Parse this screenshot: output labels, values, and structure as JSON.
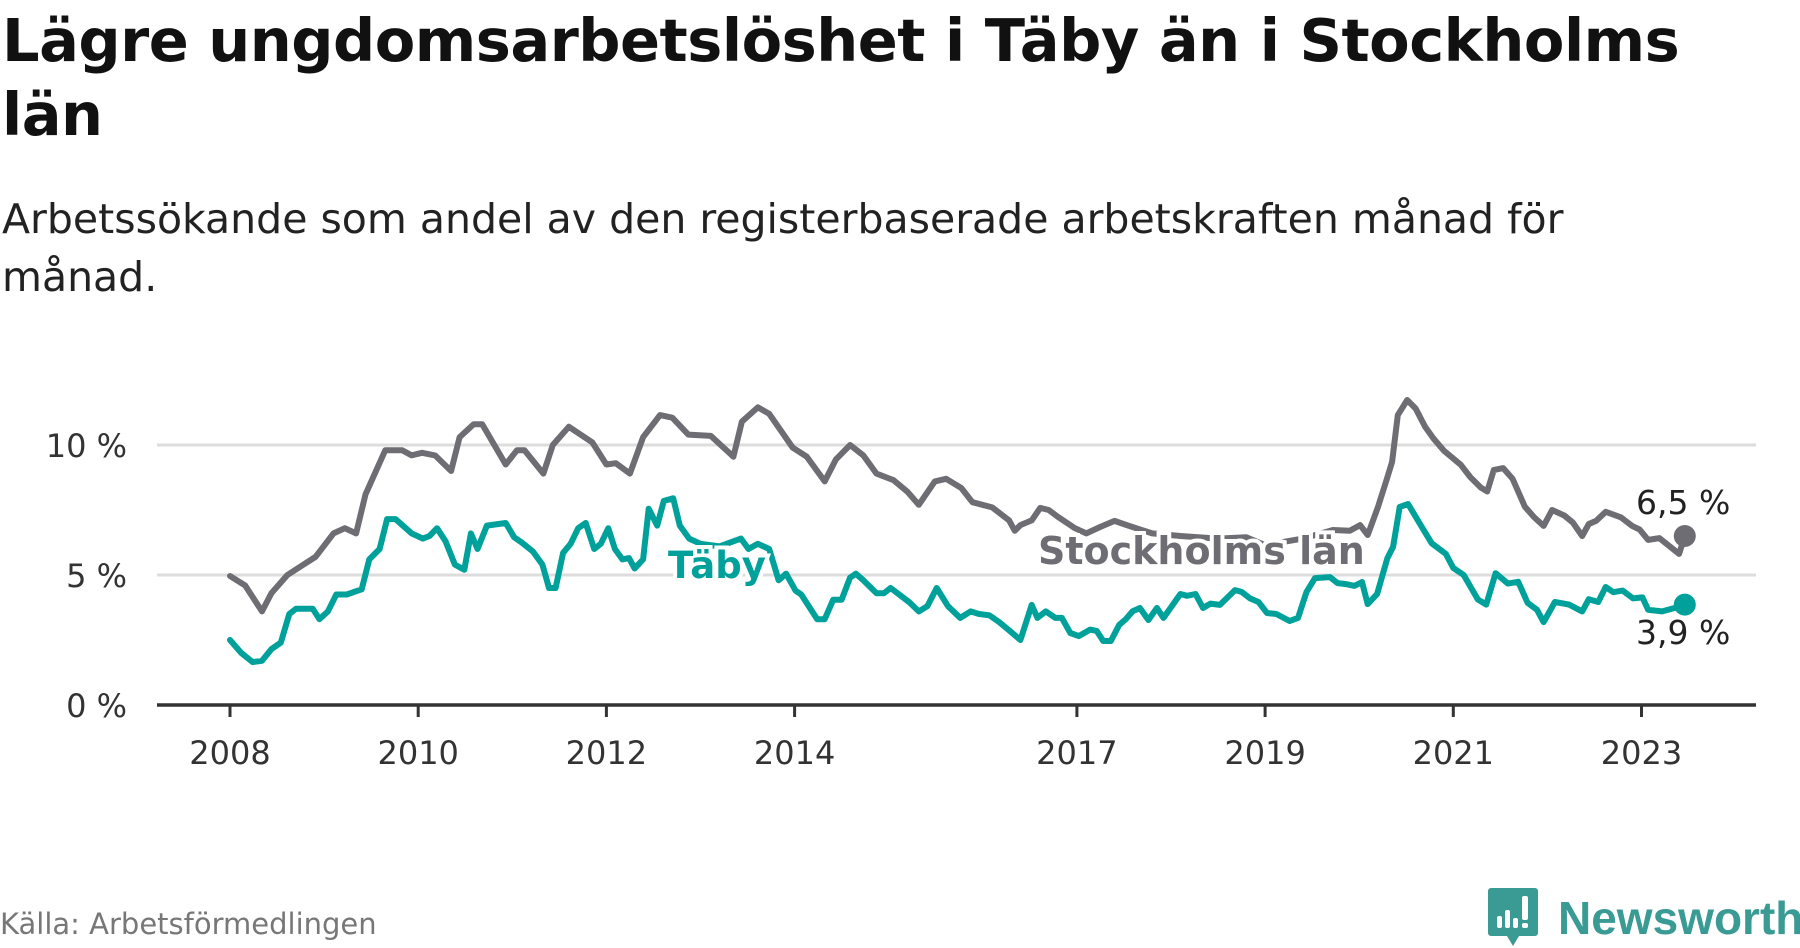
{
  "header": {
    "title": "Lägre ungdomsarbetslöshet i Täby än i Stockholms län",
    "subtitle": "Arbetssökande som andel av den registerbaserade arbetskraften månad för månad."
  },
  "footer": {
    "source": "Källa: Arbetsförmedlingen",
    "brand": "Newsworthy"
  },
  "colors": {
    "stockholm": "#6e6d73",
    "taby": "#00a19a",
    "grid": "#dddddd",
    "axis": "#333333",
    "brand": "#3a9a94"
  },
  "chart_data": {
    "type": "line",
    "title": "Lägre ungdomsarbetslöshet i Täby än i Stockholms län",
    "xlabel": "",
    "ylabel": "",
    "xlim": [
      2007.6,
      2024.3
    ],
    "ylim": [
      0,
      12
    ],
    "grid": true,
    "y_ticks": [
      0,
      5,
      10
    ],
    "y_tick_labels": [
      "0 %",
      "5 %",
      "10 %"
    ],
    "x_ticks": [
      2008,
      2010,
      2012,
      2014,
      2017,
      2019,
      2021,
      2023
    ],
    "x_tick_labels": [
      "2008",
      "2010",
      "2012",
      "2014",
      "2017",
      "2019",
      "2021",
      "2023"
    ],
    "series": [
      {
        "name": "Stockholms län",
        "end_label": "6,5 %",
        "x": [
          2008.0,
          2008.16,
          2008.34,
          2008.44,
          2008.61,
          2008.76,
          2008.91,
          2009.1,
          2009.22,
          2009.34,
          2009.44,
          2009.65,
          2009.83,
          2009.93,
          2010.04,
          2010.18,
          2010.35,
          2010.44,
          2010.59,
          2010.68,
          2010.93,
          2011.05,
          2011.13,
          2011.33,
          2011.43,
          2011.6,
          2011.85,
          2012.0,
          2012.1,
          2012.25,
          2012.39,
          2012.57,
          2012.7,
          2012.87,
          2013.11,
          2013.35,
          2013.44,
          2013.61,
          2013.73,
          2013.98,
          2014.13,
          2014.32,
          2014.44,
          2014.59,
          2014.73,
          2014.87,
          2015.05,
          2015.2,
          2015.32,
          2015.49,
          2015.61,
          2015.77,
          2015.89,
          2016.1,
          2016.28,
          2016.34,
          2016.4,
          2016.52,
          2016.61,
          2016.7,
          2016.8,
          2016.98,
          2017.1,
          2017.25,
          2017.4,
          2017.53,
          2017.8,
          2018.1,
          2018.5,
          2018.8,
          2019.0,
          2019.4,
          2019.72,
          2019.9,
          2020.01,
          2020.09,
          2020.2,
          2020.29,
          2020.35,
          2020.41,
          2020.51,
          2020.6,
          2020.7,
          2020.79,
          2020.9,
          2021.08,
          2021.18,
          2021.29,
          2021.36,
          2021.43,
          2021.53,
          2021.63,
          2021.76,
          2021.86,
          2021.96,
          2022.05,
          2022.18,
          2022.27,
          2022.37,
          2022.44,
          2022.52,
          2022.62,
          2022.78,
          2022.9,
          2022.98,
          2023.07,
          2023.19,
          2023.4,
          2023.46
        ],
        "values": [
          4.96,
          4.6,
          3.6,
          4.3,
          5.0,
          5.35,
          5.7,
          6.6,
          6.8,
          6.6,
          8.1,
          9.8,
          9.8,
          9.6,
          9.7,
          9.6,
          9.0,
          10.3,
          10.8,
          10.8,
          9.25,
          9.8,
          9.8,
          8.9,
          10.0,
          10.7,
          10.1,
          9.25,
          9.3,
          8.9,
          10.3,
          11.15,
          11.05,
          10.4,
          10.35,
          9.55,
          10.9,
          11.45,
          11.2,
          9.9,
          9.55,
          8.6,
          9.45,
          10.0,
          9.6,
          8.9,
          8.65,
          8.2,
          7.7,
          8.6,
          8.7,
          8.35,
          7.8,
          7.6,
          7.1,
          6.7,
          6.92,
          7.1,
          7.58,
          7.5,
          7.23,
          6.8,
          6.6,
          6.85,
          7.08,
          6.92,
          6.6,
          6.5,
          6.4,
          6.45,
          6.15,
          6.4,
          6.73,
          6.7,
          6.92,
          6.54,
          7.62,
          8.65,
          9.35,
          11.15,
          11.73,
          11.4,
          10.7,
          10.25,
          9.78,
          9.24,
          8.77,
          8.37,
          8.21,
          9.04,
          9.11,
          8.7,
          7.63,
          7.22,
          6.89,
          7.5,
          7.29,
          7.02,
          6.5,
          6.96,
          7.09,
          7.43,
          7.22,
          6.89,
          6.75,
          6.35,
          6.42,
          5.81,
          6.5
        ]
      },
      {
        "name": "Täby",
        "end_label": "3,9 %",
        "x": [
          2008.0,
          2008.12,
          2008.24,
          2008.34,
          2008.44,
          2008.54,
          2008.63,
          2008.7,
          2008.88,
          2008.95,
          2009.04,
          2009.13,
          2009.24,
          2009.4,
          2009.48,
          2009.59,
          2009.67,
          2009.76,
          2009.93,
          2010.05,
          2010.12,
          2010.2,
          2010.29,
          2010.39,
          2010.49,
          2010.56,
          2010.63,
          2010.73,
          2010.93,
          2011.02,
          2011.1,
          2011.22,
          2011.32,
          2011.39,
          2011.46,
          2011.54,
          2011.62,
          2011.7,
          2011.78,
          2011.87,
          2011.94,
          2012.02,
          2012.09,
          2012.17,
          2012.24,
          2012.3,
          2012.39,
          2012.45,
          2012.54,
          2012.61,
          2012.71,
          2012.78,
          2012.88,
          2013.0,
          2013.2,
          2013.43,
          2013.51,
          2013.61,
          2013.73,
          2013.83,
          2013.91,
          2014.01,
          2014.07,
          2014.24,
          2014.32,
          2014.41,
          2014.5,
          2014.59,
          2014.65,
          2014.73,
          2014.87,
          2014.95,
          2015.02,
          2015.22,
          2015.32,
          2015.41,
          2015.51,
          2015.63,
          2015.76,
          2015.87,
          2015.96,
          2016.07,
          2016.17,
          2016.27,
          2016.4,
          2016.52,
          2016.58,
          2016.67,
          2016.77,
          2016.84,
          2016.93,
          2017.02,
          2017.14,
          2017.21,
          2017.28,
          2017.36,
          2017.45,
          2017.52,
          2017.59,
          2017.67,
          2017.76,
          2017.85,
          2017.92,
          2018.1,
          2018.17,
          2018.26,
          2018.34,
          2018.42,
          2018.52,
          2018.68,
          2018.75,
          2018.84,
          2018.93,
          2019.02,
          2019.12,
          2019.26,
          2019.35,
          2019.44,
          2019.53,
          2019.69,
          2019.77,
          2019.86,
          2019.95,
          2020.03,
          2020.09,
          2020.19,
          2020.3,
          2020.36,
          2020.43,
          2020.52,
          2020.64,
          2020.77,
          2020.92,
          2021.0,
          2021.11,
          2021.26,
          2021.35,
          2021.45,
          2021.58,
          2021.69,
          2021.79,
          2021.89,
          2021.96,
          2022.08,
          2022.23,
          2022.37,
          2022.44,
          2022.54,
          2022.62,
          2022.7,
          2022.8,
          2022.91,
          2023.01,
          2023.07,
          2023.22,
          2023.35,
          2023.46
        ],
        "values": [
          2.5,
          2.0,
          1.65,
          1.7,
          2.15,
          2.4,
          3.5,
          3.7,
          3.7,
          3.3,
          3.6,
          4.25,
          4.25,
          4.45,
          5.6,
          6.0,
          7.15,
          7.15,
          6.6,
          6.4,
          6.5,
          6.8,
          6.3,
          5.4,
          5.2,
          6.6,
          6.0,
          6.9,
          7.0,
          6.45,
          6.25,
          5.9,
          5.4,
          4.5,
          4.5,
          5.85,
          6.2,
          6.8,
          7.0,
          6.0,
          6.2,
          6.8,
          6.0,
          5.6,
          5.65,
          5.25,
          5.6,
          7.55,
          6.9,
          7.85,
          7.95,
          6.9,
          6.4,
          6.2,
          6.1,
          6.4,
          6.0,
          6.2,
          6.0,
          4.8,
          5.05,
          4.4,
          4.25,
          3.3,
          3.3,
          4.05,
          4.05,
          4.9,
          5.05,
          4.8,
          4.3,
          4.3,
          4.5,
          3.95,
          3.6,
          3.8,
          4.5,
          3.8,
          3.35,
          3.6,
          3.5,
          3.45,
          3.2,
          2.9,
          2.5,
          3.85,
          3.35,
          3.6,
          3.35,
          3.35,
          2.77,
          2.65,
          2.9,
          2.85,
          2.46,
          2.46,
          3.08,
          3.3,
          3.6,
          3.73,
          3.27,
          3.73,
          3.35,
          4.27,
          4.2,
          4.27,
          3.73,
          3.9,
          3.85,
          4.42,
          4.35,
          4.1,
          3.96,
          3.54,
          3.5,
          3.23,
          3.35,
          4.35,
          4.88,
          4.92,
          4.69,
          4.65,
          4.58,
          4.73,
          3.88,
          4.27,
          5.65,
          6.08,
          7.62,
          7.73,
          7.0,
          6.22,
          5.81,
          5.27,
          5.0,
          4.06,
          3.86,
          5.07,
          4.67,
          4.74,
          3.93,
          3.66,
          3.19,
          3.96,
          3.86,
          3.6,
          4.07,
          3.96,
          4.54,
          4.34,
          4.4,
          4.1,
          4.14,
          3.66,
          3.6,
          3.73,
          3.86
        ]
      }
    ]
  }
}
